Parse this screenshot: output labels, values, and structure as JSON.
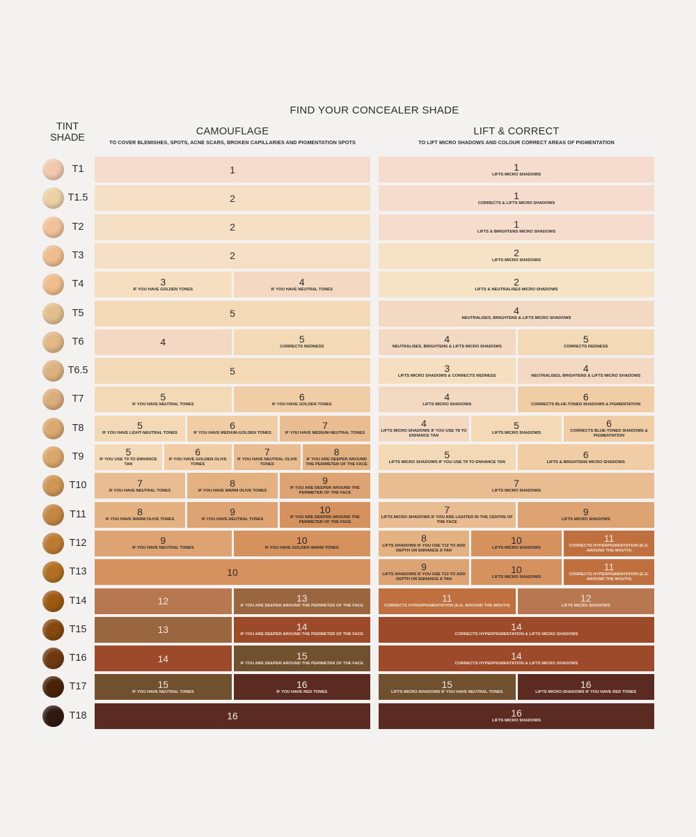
{
  "title": "FIND YOUR CONCEALER SHADE",
  "tint_header": "TINT SHADE",
  "columns": {
    "camouflage": {
      "title": "CAMOUFLAGE",
      "subtitle": "TO COVER BLEMISHES, SPOTS, ACNE SCARS, BROKEN CAPILLARIES AND PIGMENTATION SPOTS"
    },
    "lift": {
      "title": "LIFT & CORRECT",
      "subtitle": "TO LIFT MICRO SHADOWS AND COLOUR CORRECT AREAS OF PIGMENTATION"
    }
  },
  "rows": [
    {
      "tint": "T1",
      "swatch": "#f1c9af",
      "camo": [
        {
          "num": "1",
          "note": "",
          "bg": "#f4dbcb"
        }
      ],
      "lift": [
        {
          "num": "1",
          "note": "LIFTS MICRO SHADOWS",
          "bg": "#f5dccc"
        }
      ]
    },
    {
      "tint": "T1.5",
      "swatch": "#ead1a6",
      "camo": [
        {
          "num": "2",
          "note": "",
          "bg": "#f5e0c6"
        }
      ],
      "lift": [
        {
          "num": "1",
          "note": "CORRECTS & LIFTS MICRO SHADOWS",
          "bg": "#f5dccc"
        }
      ]
    },
    {
      "tint": "T2",
      "swatch": "#f0c29b",
      "camo": [
        {
          "num": "2",
          "note": "",
          "bg": "#f5e0c6"
        }
      ],
      "lift": [
        {
          "num": "1",
          "note": "LIFTS & BRIGHTENS MICRO SHADOWS",
          "bg": "#f5dccc"
        }
      ]
    },
    {
      "tint": "T3",
      "swatch": "#efbc8f",
      "camo": [
        {
          "num": "2",
          "note": "",
          "bg": "#f5e0c6"
        }
      ],
      "lift": [
        {
          "num": "2",
          "note": "LIFTS MICRO SHADOWS",
          "bg": "#f6e2c4"
        }
      ]
    },
    {
      "tint": "T4",
      "swatch": "#efbd8c",
      "camo": [
        {
          "num": "3",
          "note": "IF YOU HAVE GOLDEN TONES",
          "bg": "#f5dfc0"
        },
        {
          "num": "4",
          "note": "IF YOU HAVE NEUTRAL TONES",
          "bg": "#f4d8c1"
        }
      ],
      "lift": [
        {
          "num": "2",
          "note": "LIFTS & NEUTRALISES MICRO SHADOWS",
          "bg": "#f6e2c4"
        }
      ]
    },
    {
      "tint": "T5",
      "swatch": "#e3bf8d",
      "camo": [
        {
          "num": "5",
          "note": "",
          "bg": "#f3d9b6"
        }
      ],
      "lift": [
        {
          "num": "4",
          "note": "NEUTRALISES, BRIGHTENS & LIFTS MICRO SHADOWS",
          "bg": "#f4d9c2"
        }
      ]
    },
    {
      "tint": "T6",
      "swatch": "#e2b887",
      "camo": [
        {
          "num": "4",
          "note": "",
          "bg": "#f4d8c1"
        },
        {
          "num": "5",
          "note": "CORRECTS REDNESS",
          "bg": "#f3d9b6"
        }
      ],
      "lift": [
        {
          "num": "4",
          "note": "NEUTRALISES, BRIGHTENS & LIFTS MICRO SHADOWS",
          "bg": "#f4d9c2"
        },
        {
          "num": "5",
          "note": "CORRECTS REDNESS",
          "bg": "#f3d9b6"
        }
      ]
    },
    {
      "tint": "T6.5",
      "swatch": "#deb27f",
      "camo": [
        {
          "num": "5",
          "note": "",
          "bg": "#f3d9b6"
        }
      ],
      "lift": [
        {
          "num": "3",
          "note": "LIFTS MICRO SHADOWS & CORRECTS REDNESS",
          "bg": "#f5dfc0"
        },
        {
          "num": "4",
          "note": "NEUTRALISES, BRIGHTENS & LIFTS MICRO SHADOWS",
          "bg": "#f4d9c2"
        }
      ]
    },
    {
      "tint": "T7",
      "swatch": "#dcac7d",
      "camo": [
        {
          "num": "5",
          "note": "IF YOU HAVE NEUTRAL TONES",
          "bg": "#f3d9b6"
        },
        {
          "num": "6",
          "note": "IF YOU HAVE GOLDEN TONES",
          "bg": "#f1cda6"
        }
      ],
      "lift": [
        {
          "num": "4",
          "note": "LIFTS MICRO SHADOWS",
          "bg": "#f4d9c2"
        },
        {
          "num": "6",
          "note": "CORRECTS BLUE-TONED SHADOWS & PIGMENTATION",
          "bg": "#f1cda6"
        }
      ]
    },
    {
      "tint": "T8",
      "swatch": "#dba86f",
      "camo": [
        {
          "num": "5",
          "note": "IF YOU HAVE LIGHT-NEUTRAL TONES",
          "bg": "#f3d9b6"
        },
        {
          "num": "6",
          "note": "IF YOU HAVE MEDIUM-GOLDEN TONES",
          "bg": "#f1cda6"
        },
        {
          "num": "7",
          "note": "IF YOU HAVE MEDIUM-NEUTRAL TONES",
          "bg": "#e9bd91"
        }
      ],
      "lift": [
        {
          "num": "4",
          "note": "LIFTS MICRO SHADOWS IF YOU USE T8 TO ENHANCE TAN",
          "bg": "#f4d9c2"
        },
        {
          "num": "5",
          "note": "LIFTS MICRO SHADOWS",
          "bg": "#f3d9b6"
        },
        {
          "num": "6",
          "note": "CORRECTS BLUE-TONED SHADOWS & PIGMENTATION",
          "bg": "#f1cda6"
        }
      ]
    },
    {
      "tint": "T9",
      "swatch": "#d9a66b",
      "camo": [
        {
          "num": "5",
          "note": "IF YOU USE T9 TO ENHANCE TAN",
          "bg": "#f3d9b6"
        },
        {
          "num": "6",
          "note": "IF YOU HAVE GOLDEN OLIVE TONES",
          "bg": "#f1cda6"
        },
        {
          "num": "7",
          "note": "IF YOU HAVE NEUTRAL OLIVE TONES",
          "bg": "#e9bd91"
        },
        {
          "num": "8",
          "note": "IF YOU ARE DEEPER AROUND THE PERIMETER OF THE FACE",
          "bg": "#e4b181"
        }
      ],
      "lift": [
        {
          "num": "5",
          "note": "LIFTS MICRO SHADOWS IF YOU USE T9 TO ENHANCE TAN",
          "bg": "#f3d9b6"
        },
        {
          "num": "6",
          "note": "LIFTS & BRIGHTENS MICRO SHADOWS",
          "bg": "#f1cda6"
        }
      ]
    },
    {
      "tint": "T10",
      "swatch": "#cf9655",
      "camo": [
        {
          "num": "7",
          "note": "IF YOU HAVE NEUTRAL TONES",
          "bg": "#e9bd91"
        },
        {
          "num": "8",
          "note": "IF YOU HAVE WARM OLIVE TONES",
          "bg": "#e4b181"
        },
        {
          "num": "9",
          "note": "IF YOU ARE DEEPER AROUND THE PERIMETER OF THE FACE",
          "bg": "#dea373"
        }
      ],
      "lift": [
        {
          "num": "7",
          "note": "LIFTS MICRO SHADOWS",
          "bg": "#e9bd91"
        }
      ]
    },
    {
      "tint": "T11",
      "swatch": "#c48643",
      "camo": [
        {
          "num": "8",
          "note": "IF YOU HAVE WARM OLIVE TONES",
          "bg": "#e4b181"
        },
        {
          "num": "9",
          "note": "IF YOU HAVE NEUTRAL TONES",
          "bg": "#dea373"
        },
        {
          "num": "10",
          "note": "IF YOU ARE DEEPER AROUND THE PERIMETER OF THE FACE",
          "bg": "#d5915e"
        }
      ],
      "lift": [
        {
          "num": "7",
          "note": "LIFTS MICRO SHADOWS IF YOU ARE LIGHTER IN THE CENTRE OF THE FACE",
          "bg": "#e9bd91"
        },
        {
          "num": "9",
          "note": "LIFTS MICRO SHADOWS",
          "bg": "#dea373"
        }
      ]
    },
    {
      "tint": "T12",
      "swatch": "#bd7b32",
      "camo": [
        {
          "num": "9",
          "note": "IF YOU HAVE NEUTRAL TONES",
          "bg": "#dea373"
        },
        {
          "num": "10",
          "note": "IF YOU HAVE GOLDEN WARM TONES",
          "bg": "#d5915e"
        }
      ],
      "lift": [
        {
          "num": "8",
          "note": "LIFTS SHADOWS IF YOU USE T12 TO ADD DEPTH OR ENHANCE A TAN",
          "bg": "#e4b181"
        },
        {
          "num": "10",
          "note": "LIFTS MICRO SHADOWS",
          "bg": "#d5915e"
        },
        {
          "num": "11",
          "note": "CORRECTS HYPERPIGMENTATION (E.G. AROUND THE MOUTH)",
          "bg": "#c0703f"
        }
      ]
    },
    {
      "tint": "T13",
      "swatch": "#b06f23",
      "camo": [
        {
          "num": "10",
          "note": "",
          "bg": "#d5915e"
        }
      ],
      "lift": [
        {
          "num": "9",
          "note": "LIFTS SHADOWS IF YOU USE T13 TO ADD DEPTH OR ENHANCE A TAN",
          "bg": "#dea373"
        },
        {
          "num": "10",
          "note": "LIFTS MICRO SHADOWS",
          "bg": "#d5915e"
        },
        {
          "num": "11",
          "note": "CORRECTS HYPERPIGMENTATION (E.G. AROUND THE MOUTH)",
          "bg": "#c0703f"
        }
      ]
    },
    {
      "tint": "T14",
      "swatch": "#9d5a12",
      "camo": [
        {
          "num": "12",
          "note": "",
          "bg": "#b77750"
        },
        {
          "num": "13",
          "note": "IF YOU ARE DEEPER AROUND THE PERIMETER OF THE FACE",
          "bg": "#9a663f"
        }
      ],
      "lift": [
        {
          "num": "11",
          "note": "CORRECTS HYPERPIGMENTATION (E.G. AROUND THE MOUTH)",
          "bg": "#c0703f"
        },
        {
          "num": "12",
          "note": "LIFTS MICRO SHADOWS",
          "bg": "#b77750"
        }
      ]
    },
    {
      "tint": "T15",
      "swatch": "#86490f",
      "camo": [
        {
          "num": "13",
          "note": "",
          "bg": "#9a663f"
        },
        {
          "num": "14",
          "note": "IF YOU ARE DEEPER AROUND THE PERIMETER OF THE FACE",
          "bg": "#9c4a2a"
        }
      ],
      "lift": [
        {
          "num": "14",
          "note": "CORRECTS HYPERPIGMENTATION & LIFTS MICRO SHADOWS",
          "bg": "#9c4a2a"
        }
      ]
    },
    {
      "tint": "T16",
      "swatch": "#6e3910",
      "camo": [
        {
          "num": "14",
          "note": "",
          "bg": "#9c4a2a"
        },
        {
          "num": "15",
          "note": "IF YOU ARE DEEPER AROUND THE PERIMETER OF THE FACE",
          "bg": "#70502e"
        }
      ],
      "lift": [
        {
          "num": "14",
          "note": "CORRECTS HYPERPIGMENTATION & LIFTS MICRO SHADOWS",
          "bg": "#9c4a2a"
        }
      ]
    },
    {
      "tint": "T17",
      "swatch": "#4a2209",
      "camo": [
        {
          "num": "15",
          "note": "IF YOU HAVE NEUTRAL TONES",
          "bg": "#70502e"
        },
        {
          "num": "16",
          "note": "IF YOU HAVE RED TONES",
          "bg": "#5b2b22"
        }
      ],
      "lift": [
        {
          "num": "15",
          "note": "LIFTS MICRO-SHADOWS IF YOU HAVE NEUTRAL TONES",
          "bg": "#70502e"
        },
        {
          "num": "16",
          "note": "LIFTS MICRO-SHADOWS IF YOU HAVE RED TONES",
          "bg": "#5b2b22"
        }
      ]
    },
    {
      "tint": "T18",
      "swatch": "#2f1a12",
      "camo": [
        {
          "num": "16",
          "note": "",
          "bg": "#5b2b22"
        }
      ],
      "lift": [
        {
          "num": "16",
          "note": "LIFTS MICRO SHADOWS",
          "bg": "#5b2b22"
        }
      ]
    }
  ]
}
